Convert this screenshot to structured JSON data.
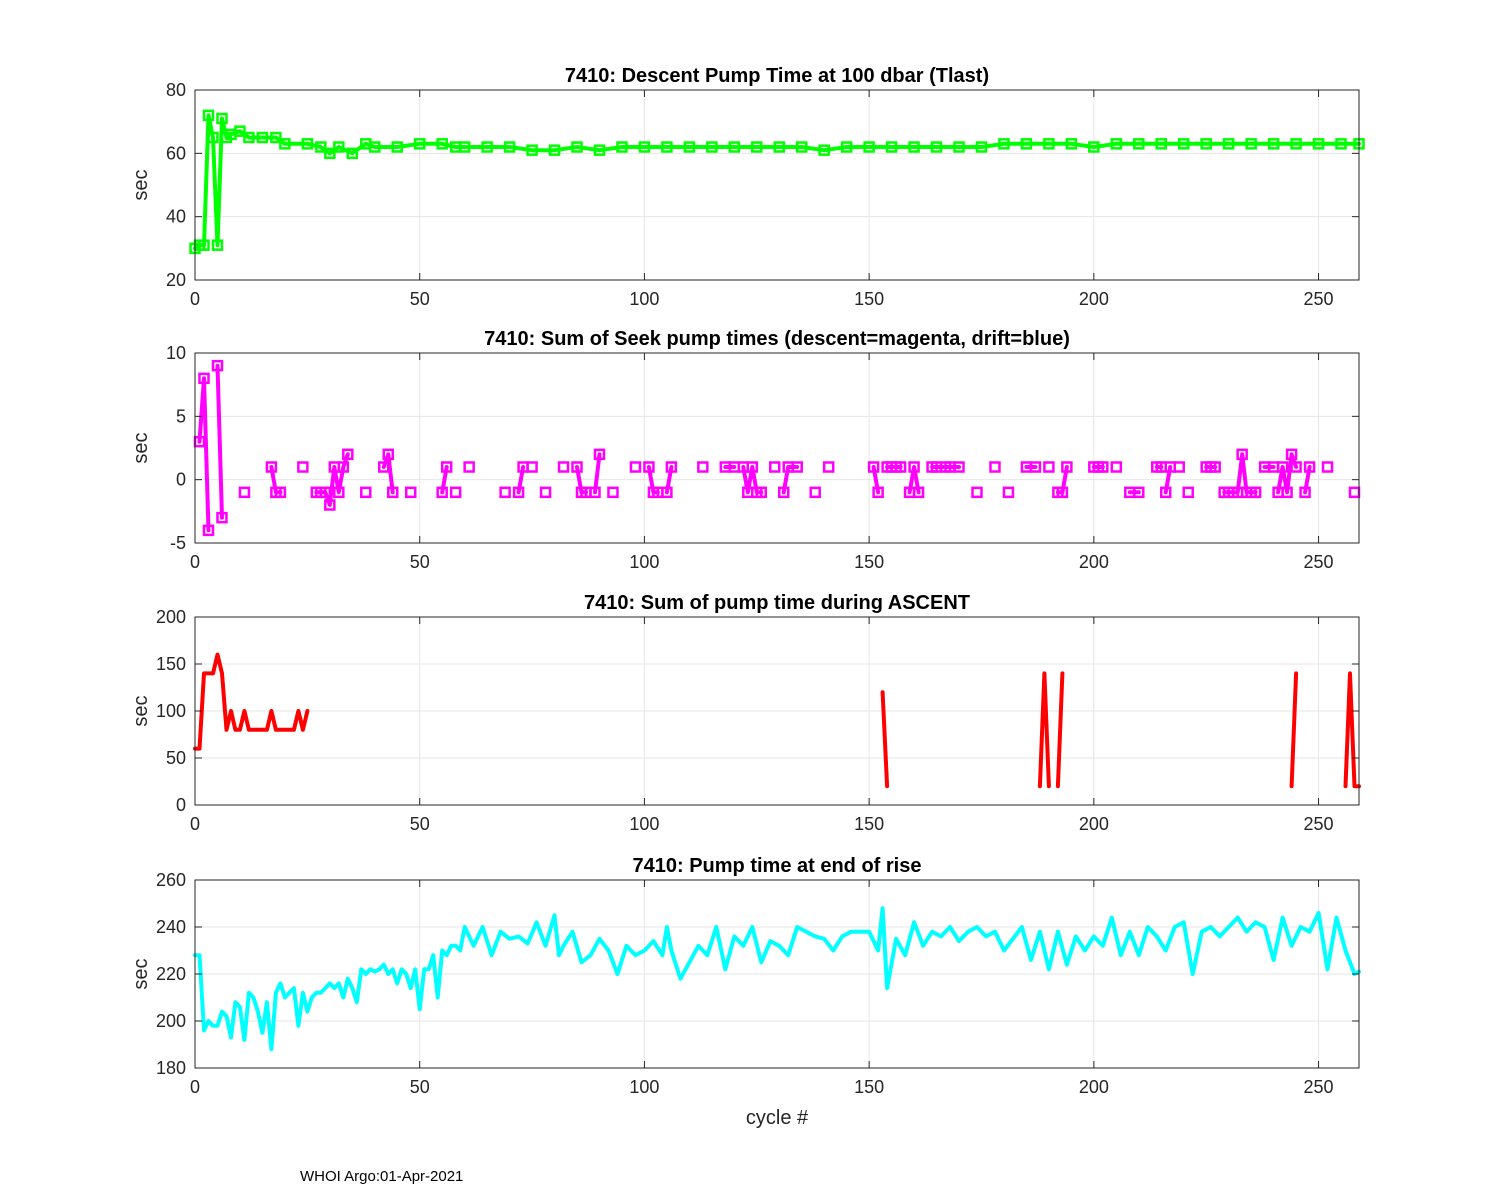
{
  "footer": "WHOI Argo:01-Apr-2021",
  "chart_data": [
    {
      "type": "line",
      "title": "7410: Descent Pump Time at 100 dbar (Tlast)",
      "ylabel": "sec",
      "xlabel": "",
      "xlim": [
        0,
        259
      ],
      "ylim": [
        20,
        80
      ],
      "xticks": [
        0,
        50,
        100,
        150,
        200,
        250
      ],
      "yticks": [
        20,
        40,
        60,
        80
      ],
      "grid": true,
      "marker": "square",
      "color": "#00ff00",
      "series": [
        {
          "x": [
            0,
            1,
            2,
            3,
            4,
            5,
            6,
            7,
            8,
            10,
            12,
            15,
            18,
            20,
            25,
            28,
            30,
            32,
            35,
            38,
            40,
            45,
            50,
            55,
            58,
            60,
            65,
            70,
            75,
            80,
            85,
            90,
            95,
            100,
            105,
            110,
            115,
            120,
            125,
            130,
            135,
            140,
            145,
            150,
            155,
            160,
            165,
            170,
            175,
            180,
            185,
            190,
            195,
            200,
            205,
            210,
            215,
            220,
            225,
            230,
            235,
            240,
            245,
            250,
            255,
            259
          ],
          "y": [
            30,
            31,
            31,
            72,
            65,
            31,
            71,
            65,
            66,
            67,
            65,
            65,
            65,
            63,
            63,
            62,
            60,
            62,
            60,
            63,
            62,
            62,
            63,
            63,
            62,
            62,
            62,
            62,
            61,
            61,
            62,
            61,
            62,
            62,
            62,
            62,
            62,
            62,
            62,
            62,
            62,
            61,
            62,
            62,
            62,
            62,
            62,
            62,
            62,
            63,
            63,
            63,
            63,
            62,
            63,
            63,
            63,
            63,
            63,
            63,
            63,
            63,
            63,
            63,
            63,
            63
          ]
        }
      ]
    },
    {
      "type": "line",
      "title": "7410: Sum of Seek pump times (descent=magenta, drift=blue)",
      "ylabel": "sec",
      "xlabel": "",
      "xlim": [
        0,
        259
      ],
      "ylim": [
        -5,
        10
      ],
      "xticks": [
        0,
        50,
        100,
        150,
        200,
        250
      ],
      "yticks": [
        -5,
        0,
        5,
        10
      ],
      "grid": true,
      "marker": "square",
      "color": "#ff00ff",
      "series": [
        {
          "x": [
            1,
            2,
            3
          ],
          "y": [
            3,
            8,
            -4
          ]
        },
        {
          "x": [
            5,
            6
          ],
          "y": [
            9,
            -3
          ]
        },
        {
          "x": [
            11
          ],
          "y": [
            -1
          ]
        },
        {
          "x": [
            17,
            18,
            19
          ],
          "y": [
            1,
            -1,
            -1
          ]
        },
        {
          "x": [
            24
          ],
          "y": [
            1
          ]
        },
        {
          "x": [
            27,
            28,
            29,
            30,
            31,
            32,
            33,
            34
          ],
          "y": [
            -1,
            -1,
            -1,
            -2,
            1,
            -1,
            1,
            2
          ]
        },
        {
          "x": [
            38
          ],
          "y": [
            -1
          ]
        },
        {
          "x": [
            42,
            43,
            44
          ],
          "y": [
            1,
            2,
            -1
          ]
        },
        {
          "x": [
            48
          ],
          "y": [
            -1
          ]
        },
        {
          "x": [
            55,
            56
          ],
          "y": [
            -1,
            1
          ]
        },
        {
          "x": [
            58
          ],
          "y": [
            -1
          ]
        },
        {
          "x": [
            61
          ],
          "y": [
            1
          ]
        },
        {
          "x": [
            69
          ],
          "y": [
            -1
          ]
        },
        {
          "x": [
            72,
            73
          ],
          "y": [
            -1,
            1
          ]
        },
        {
          "x": [
            75
          ],
          "y": [
            1
          ]
        },
        {
          "x": [
            78
          ],
          "y": [
            -1
          ]
        },
        {
          "x": [
            82
          ],
          "y": [
            1
          ]
        },
        {
          "x": [
            85,
            86,
            87
          ],
          "y": [
            1,
            -1,
            -1
          ]
        },
        {
          "x": [
            89,
            90
          ],
          "y": [
            -1,
            2
          ]
        },
        {
          "x": [
            93
          ],
          "y": [
            -1
          ]
        },
        {
          "x": [
            98
          ],
          "y": [
            1
          ]
        },
        {
          "x": [
            101,
            102,
            103
          ],
          "y": [
            1,
            -1,
            -1
          ]
        },
        {
          "x": [
            105,
            106
          ],
          "y": [
            -1,
            1
          ]
        },
        {
          "x": [
            113
          ],
          "y": [
            1
          ]
        },
        {
          "x": [
            118,
            120
          ],
          "y": [
            1,
            1
          ]
        },
        {
          "x": [
            122,
            123,
            124,
            125,
            126
          ],
          "y": [
            1,
            -1,
            1,
            -1,
            -1
          ]
        },
        {
          "x": [
            129
          ],
          "y": [
            1
          ]
        },
        {
          "x": [
            131,
            132,
            134
          ],
          "y": [
            -1,
            1,
            1
          ]
        },
        {
          "x": [
            138
          ],
          "y": [
            -1
          ]
        },
        {
          "x": [
            141
          ],
          "y": [
            1
          ]
        },
        {
          "x": [
            151,
            152
          ],
          "y": [
            1,
            -1
          ]
        },
        {
          "x": [
            154,
            155,
            156,
            157
          ],
          "y": [
            1,
            1,
            1,
            1
          ]
        },
        {
          "x": [
            159,
            160,
            161
          ],
          "y": [
            -1,
            1,
            -1
          ]
        },
        {
          "x": [
            164,
            165,
            167,
            168,
            170
          ],
          "y": [
            1,
            1,
            1,
            1,
            1
          ]
        },
        {
          "x": [
            174
          ],
          "y": [
            -1
          ]
        },
        {
          "x": [
            178
          ],
          "y": [
            1
          ]
        },
        {
          "x": [
            181
          ],
          "y": [
            -1
          ]
        },
        {
          "x": [
            185,
            187
          ],
          "y": [
            1,
            1
          ]
        },
        {
          "x": [
            190
          ],
          "y": [
            1
          ]
        },
        {
          "x": [
            192,
            193,
            194
          ],
          "y": [
            -1,
            -1,
            1
          ]
        },
        {
          "x": [
            200,
            201,
            202
          ],
          "y": [
            1,
            1,
            1
          ]
        },
        {
          "x": [
            205
          ],
          "y": [
            1
          ]
        },
        {
          "x": [
            208,
            210
          ],
          "y": [
            -1,
            -1
          ]
        },
        {
          "x": [
            214,
            215
          ],
          "y": [
            1,
            1
          ]
        },
        {
          "x": [
            216,
            217
          ],
          "y": [
            -1,
            1
          ]
        },
        {
          "x": [
            219
          ],
          "y": [
            1
          ]
        },
        {
          "x": [
            221
          ],
          "y": [
            -1
          ]
        },
        {
          "x": [
            225,
            226,
            227
          ],
          "y": [
            1,
            1,
            1
          ]
        },
        {
          "x": [
            229,
            230,
            231,
            232,
            233,
            234,
            235,
            236
          ],
          "y": [
            -1,
            -1,
            -1,
            -1,
            2,
            -1,
            -1,
            -1
          ]
        },
        {
          "x": [
            238,
            240
          ],
          "y": [
            1,
            1
          ]
        },
        {
          "x": [
            241,
            242,
            243,
            244,
            245
          ],
          "y": [
            -1,
            1,
            -1,
            2,
            1
          ]
        },
        {
          "x": [
            247,
            248
          ],
          "y": [
            -1,
            1
          ]
        },
        {
          "x": [
            252
          ],
          "y": [
            1
          ]
        },
        {
          "x": [
            258
          ],
          "y": [
            -1
          ]
        }
      ]
    },
    {
      "type": "line",
      "title": "7410: Sum of pump time during ASCENT",
      "ylabel": "sec",
      "xlabel": "",
      "xlim": [
        0,
        259
      ],
      "ylim": [
        0,
        200
      ],
      "xticks": [
        0,
        50,
        100,
        150,
        200,
        250
      ],
      "yticks": [
        0,
        50,
        100,
        150,
        200
      ],
      "grid": true,
      "marker": "none",
      "color": "#ff0000",
      "series": [
        {
          "x": [
            0,
            1,
            2,
            3,
            4,
            5,
            6,
            7,
            8,
            9,
            10,
            11,
            12,
            13,
            14,
            15,
            16,
            17,
            18,
            19,
            20,
            21,
            22,
            23,
            24,
            25
          ],
          "y": [
            60,
            60,
            140,
            140,
            140,
            160,
            140,
            80,
            100,
            80,
            80,
            100,
            80,
            80,
            80,
            80,
            80,
            100,
            80,
            80,
            80,
            80,
            80,
            100,
            80,
            100
          ]
        },
        {
          "x": [
            153,
            154
          ],
          "y": [
            120,
            20
          ]
        },
        {
          "x": [
            188,
            189,
            190
          ],
          "y": [
            20,
            140,
            20
          ]
        },
        {
          "x": [
            192,
            193
          ],
          "y": [
            20,
            140
          ]
        },
        {
          "x": [
            244,
            245
          ],
          "y": [
            20,
            140
          ]
        },
        {
          "x": [
            256,
            257,
            258,
            259
          ],
          "y": [
            20,
            140,
            20,
            20
          ]
        }
      ]
    },
    {
      "type": "line",
      "title": "7410: Pump time at end of rise",
      "ylabel": "sec",
      "xlabel": "cycle #",
      "xlim": [
        0,
        259
      ],
      "ylim": [
        180,
        260
      ],
      "xticks": [
        0,
        50,
        100,
        150,
        200,
        250
      ],
      "yticks": [
        180,
        200,
        220,
        240,
        260
      ],
      "grid": true,
      "marker": "none",
      "color": "#00ffff",
      "series": [
        {
          "x": [
            0,
            1,
            2,
            3,
            4,
            5,
            6,
            7,
            8,
            9,
            10,
            11,
            12,
            13,
            14,
            15,
            16,
            17,
            18,
            19,
            20,
            21,
            22,
            23,
            24,
            25,
            26,
            27,
            28,
            29,
            30,
            31,
            32,
            33,
            34,
            35,
            36,
            37,
            38,
            39,
            40,
            41,
            42,
            43,
            44,
            45,
            46,
            47,
            48,
            49,
            50,
            51,
            52,
            53,
            54,
            55,
            56,
            57,
            58,
            59,
            60,
            62,
            64,
            66,
            68,
            70,
            72,
            74,
            76,
            78,
            80,
            81,
            82,
            84,
            86,
            88,
            90,
            92,
            94,
            96,
            98,
            100,
            102,
            104,
            105,
            106,
            108,
            110,
            112,
            114,
            116,
            118,
            120,
            122,
            124,
            126,
            128,
            130,
            132,
            134,
            136,
            138,
            140,
            142,
            144,
            146,
            148,
            150,
            152,
            153,
            154,
            156,
            158,
            160,
            162,
            164,
            166,
            168,
            170,
            172,
            174,
            176,
            178,
            180,
            182,
            184,
            186,
            188,
            190,
            192,
            194,
            196,
            198,
            200,
            202,
            204,
            206,
            208,
            210,
            212,
            214,
            216,
            218,
            220,
            222,
            224,
            226,
            228,
            230,
            232,
            234,
            236,
            238,
            240,
            242,
            244,
            246,
            248,
            250,
            252,
            254,
            256,
            258,
            259
          ],
          "y": [
            228,
            228,
            196,
            200,
            198,
            198,
            204,
            202,
            193,
            208,
            206,
            192,
            212,
            210,
            204,
            195,
            208,
            188,
            212,
            216,
            210,
            212,
            214,
            198,
            212,
            204,
            210,
            212,
            212,
            214,
            216,
            214,
            216,
            210,
            218,
            214,
            208,
            222,
            220,
            222,
            221,
            222,
            224,
            220,
            222,
            216,
            222,
            220,
            214,
            222,
            205,
            222,
            222,
            228,
            210,
            230,
            228,
            232,
            232,
            230,
            240,
            232,
            240,
            228,
            238,
            235,
            236,
            233,
            242,
            232,
            245,
            228,
            232,
            238,
            225,
            228,
            235,
            230,
            220,
            232,
            228,
            230,
            234,
            228,
            240,
            230,
            218,
            225,
            232,
            228,
            240,
            222,
            236,
            232,
            240,
            225,
            234,
            232,
            228,
            240,
            238,
            236,
            235,
            230,
            236,
            238,
            238,
            238,
            230,
            248,
            214,
            235,
            228,
            242,
            232,
            238,
            236,
            240,
            234,
            238,
            240,
            236,
            238,
            230,
            235,
            240,
            226,
            238,
            222,
            238,
            224,
            236,
            230,
            236,
            232,
            244,
            228,
            238,
            228,
            240,
            236,
            230,
            240,
            242,
            220,
            238,
            240,
            236,
            240,
            244,
            238,
            242,
            240,
            226,
            244,
            232,
            240,
            238,
            246,
            222,
            244,
            230,
            220,
            221
          ]
        }
      ]
    }
  ]
}
